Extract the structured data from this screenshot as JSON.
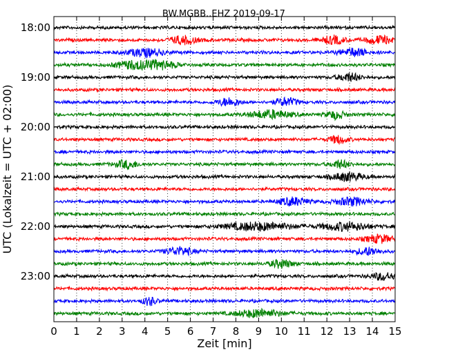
{
  "chart_data": {
    "type": "line",
    "title": "BW.MGBB..EHZ 2019-09-17",
    "xlabel": "Zeit  [min]",
    "ylabel": "UTC (Lokalzeit = UTC + 02:00)",
    "xlim": [
      0,
      15
    ],
    "x_ticks": [
      "0",
      "1",
      "2",
      "3",
      "4",
      "5",
      "6",
      "7",
      "8",
      "9",
      "10",
      "11",
      "12",
      "13",
      "14",
      "15"
    ],
    "y_ticks": [
      "18:00",
      "19:00",
      "20:00",
      "21:00",
      "22:00",
      "23:00"
    ],
    "grid": "vertical-dotted",
    "trace_interval_min": 15,
    "trace_colors": [
      "#000000",
      "#ff0000",
      "#0000ff",
      "#008000"
    ],
    "traces": [
      {
        "start": "18:00",
        "color": "#000000",
        "bursts": []
      },
      {
        "start": "18:15",
        "color": "#ff0000",
        "bursts": [
          [
            5.7,
            0.6
          ],
          [
            12.3,
            0.5
          ],
          [
            14.3,
            0.6
          ]
        ]
      },
      {
        "start": "18:30",
        "color": "#0000ff",
        "bursts": [
          [
            4.0,
            0.8
          ],
          [
            13.2,
            0.6
          ]
        ]
      },
      {
        "start": "18:45",
        "color": "#008000",
        "bursts": [
          [
            3.5,
            0.8
          ],
          [
            4.7,
            0.7
          ]
        ]
      },
      {
        "start": "19:00",
        "color": "#000000",
        "bursts": [
          [
            13.0,
            0.5
          ]
        ]
      },
      {
        "start": "19:15",
        "color": "#ff0000",
        "bursts": []
      },
      {
        "start": "19:30",
        "color": "#0000ff",
        "bursts": [
          [
            7.7,
            0.5
          ],
          [
            10.2,
            0.5
          ]
        ]
      },
      {
        "start": "19:45",
        "color": "#008000",
        "bursts": [
          [
            9.5,
            0.9
          ],
          [
            12.4,
            0.4
          ]
        ]
      },
      {
        "start": "20:00",
        "color": "#000000",
        "bursts": []
      },
      {
        "start": "20:15",
        "color": "#ff0000",
        "bursts": [
          [
            12.5,
            0.4
          ]
        ]
      },
      {
        "start": "20:30",
        "color": "#0000ff",
        "bursts": []
      },
      {
        "start": "20:45",
        "color": "#008000",
        "bursts": [
          [
            3.2,
            0.5
          ],
          [
            12.6,
            0.4
          ]
        ]
      },
      {
        "start": "21:00",
        "color": "#000000",
        "bursts": [
          [
            12.9,
            0.7
          ]
        ]
      },
      {
        "start": "21:15",
        "color": "#ff0000",
        "bursts": []
      },
      {
        "start": "21:30",
        "color": "#0000ff",
        "bursts": [
          [
            13.1,
            0.7
          ],
          [
            10.5,
            0.6
          ]
        ]
      },
      {
        "start": "21:45",
        "color": "#008000",
        "bursts": []
      },
      {
        "start": "22:00",
        "color": "#000000",
        "bursts": [
          [
            9.0,
            1.5
          ],
          [
            12.8,
            1.0
          ]
        ]
      },
      {
        "start": "22:15",
        "color": "#ff0000",
        "bursts": [
          [
            14.3,
            0.6
          ]
        ]
      },
      {
        "start": "22:30",
        "color": "#0000ff",
        "bursts": [
          [
            5.5,
            0.6
          ],
          [
            13.8,
            0.5
          ]
        ]
      },
      {
        "start": "22:45",
        "color": "#008000",
        "bursts": [
          [
            10.0,
            0.5
          ]
        ]
      },
      {
        "start": "23:00",
        "color": "#000000",
        "bursts": [
          [
            14.5,
            0.5
          ]
        ]
      },
      {
        "start": "23:15",
        "color": "#ff0000",
        "bursts": []
      },
      {
        "start": "23:30",
        "color": "#0000ff",
        "bursts": [
          [
            4.2,
            0.3
          ]
        ]
      },
      {
        "start": "23:45",
        "color": "#008000",
        "bursts": [
          [
            9.0,
            1.0
          ]
        ]
      }
    ]
  }
}
